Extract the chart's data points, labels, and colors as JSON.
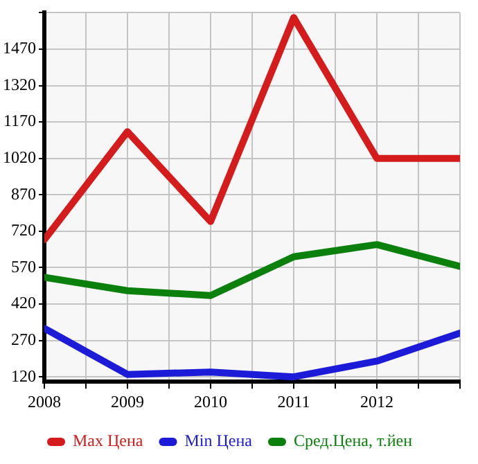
{
  "chart_data": {
    "type": "line",
    "x": [
      2008,
      2009,
      2010,
      2011,
      2012,
      2013
    ],
    "series": [
      {
        "name": "Max Цена",
        "color": "#d41c1c",
        "values": [
          685,
          1130,
          760,
          1600,
          1020,
          1020
        ]
      },
      {
        "name": "Min Цена",
        "color": "#1c1cd8",
        "values": [
          320,
          130,
          140,
          120,
          185,
          300
        ]
      },
      {
        "name": "Сред.Цена, т.йен",
        "color": "#0c800c",
        "values": [
          530,
          475,
          455,
          615,
          665,
          575
        ]
      }
    ],
    "xlim": [
      2008,
      2013
    ],
    "xticks": [
      2008,
      {
        "value": 2008.5,
        "label": null
      },
      2009,
      {
        "value": 2009.5,
        "label": null
      },
      2010,
      {
        "value": 2010.5,
        "label": null
      },
      2011,
      {
        "value": 2011.5,
        "label": null
      },
      2012,
      {
        "value": 2012.5,
        "label": null
      },
      {
        "value": 2013,
        "label": null
      }
    ],
    "ylim": [
      100,
      1620
    ],
    "yticks": [
      120,
      270,
      420,
      570,
      720,
      870,
      1020,
      1170,
      1320,
      1470,
      {
        "value": 1620,
        "label": null
      }
    ],
    "grid": true,
    "legend": "bottom",
    "marker": "none",
    "line_style": "solid"
  }
}
